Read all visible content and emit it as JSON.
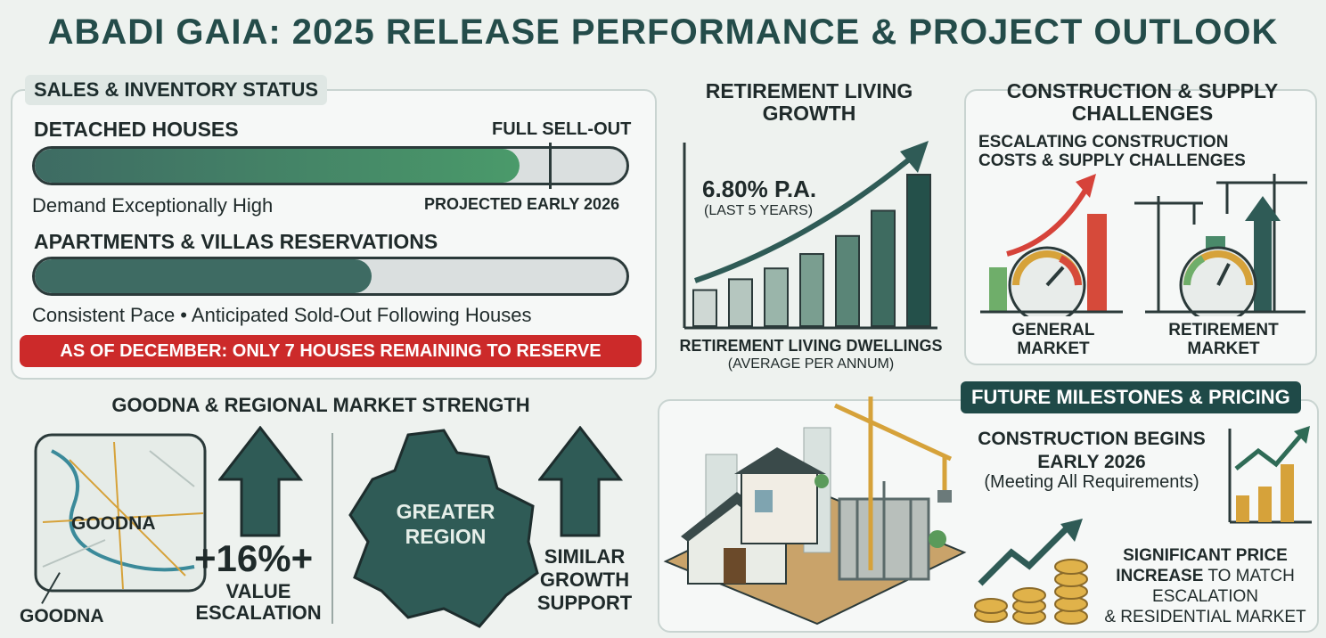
{
  "title": "ABADI GAIA: 2025 RELEASE PERFORMANCE & PROJECT OUTLOOK",
  "sales": {
    "section_title": "SALES & INVENTORY STATUS",
    "houses_label": "DETACHED HOUSES",
    "houses_status": "FULL SELL-OUT",
    "houses_progress": 0.82,
    "houses_demand": "Demand Exceptionally High",
    "houses_projected": "PROJECTED EARLY 2026",
    "apartments_label": "APARTMENTS & VILLAS RESERVATIONS",
    "apartments_progress": 0.57,
    "apartments_note": "Consistent Pace • Anticipated Sold-Out Following Houses",
    "alert": "AS OF DECEMBER: ONLY 7 HOUSES REMAINING TO RESERVE",
    "colors": {
      "houses_fill": "#4a9a6a",
      "apartments_fill": "#3e6b63",
      "alert_bg": "#cc2a2a"
    }
  },
  "retirement": {
    "title_line1": "RETIREMENT LIVING",
    "title_line2": "GROWTH",
    "rate": "6.80% P.A.",
    "period": "(LAST 5 YEARS)",
    "caption": "RETIREMENT LIVING DWELLINGS",
    "subcaption": "(AVERAGE PER ANNUM)"
  },
  "chart_data": {
    "type": "bar",
    "values": [
      1,
      1.3,
      1.6,
      2,
      2.5,
      3.2,
      4.2
    ],
    "title": "RETIREMENT LIVING GROWTH"
  },
  "construction": {
    "title_line1": "CONSTRUCTION & SUPPLY",
    "title_line2": "CHALLENGES",
    "subtitle_line1": "ESCALATING CONSTRUCTION",
    "subtitle_line2": "COSTS & SUPPLY CHALLENGES",
    "general_line1": "GENERAL",
    "general_line2": "MARKET",
    "retirement_line1": "RETIREMENT",
    "retirement_line2": "MARKET"
  },
  "goodna": {
    "section_title": "GOODNA & REGIONAL MARKET STRENGTH",
    "map_label": "GOODNA",
    "map_callout": "GOODNA",
    "value_pct": "+16%+",
    "value_line1": "VALUE",
    "value_line2": "ESCALATION",
    "region_line1": "GREATER",
    "region_line2": "REGION",
    "support_line1": "SIMILAR",
    "support_line2": "GROWTH",
    "support_line3": "SUPPORT"
  },
  "milestones": {
    "section_title": "FUTURE MILESTONES & PRICING",
    "construction_line1": "CONSTRUCTION BEGINS",
    "construction_line2": "EARLY 2026",
    "construction_note": "(Meeting All Requirements)",
    "price_line1": "SIGNIFICANT PRICE",
    "price_line2a": "INCREASE",
    "price_line2b": " TO MATCH",
    "price_line3": "ESCALATION",
    "price_line4": "& RESIDENTIAL MARKET"
  },
  "icons": [
    "crane-icon",
    "gauge-icon",
    "up-arrow-icon",
    "map-icon",
    "region-map-icon",
    "coins-icon",
    "growth-chart-icon",
    "construction-scene-icon"
  ]
}
